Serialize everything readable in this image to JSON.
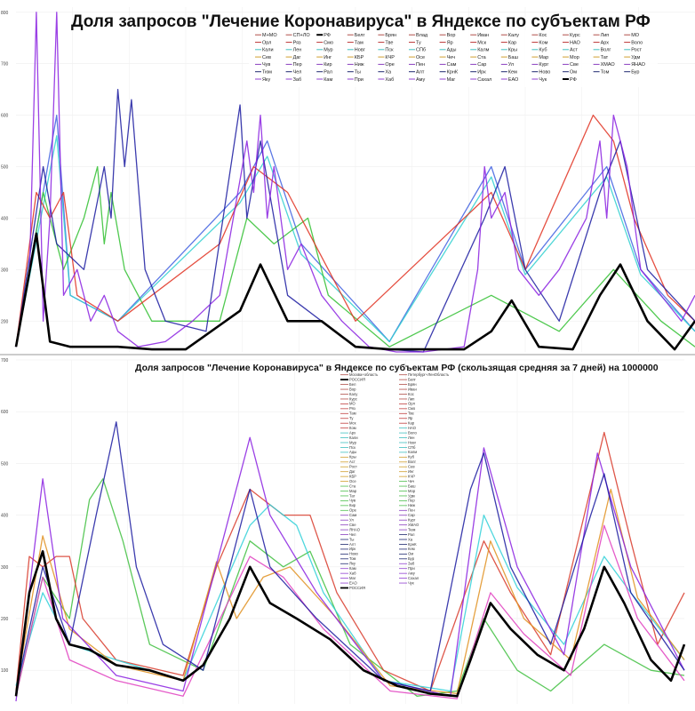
{
  "chart_data": [
    {
      "type": "line",
      "title": "Доля запросов \"Лечение Коронавируса\" в Яндексе по субъектам РФ",
      "xlabel": "",
      "ylabel": "",
      "ylim": [
        140,
        810
      ],
      "xlim": [
        0,
        100
      ],
      "yticks": [
        200,
        300,
        400,
        500,
        600,
        700,
        800
      ],
      "grid": true,
      "legend_placement": "top-right",
      "legend": [
        [
          "М+МО",
          "СП+ЛО",
          "РФ",
          "Белг",
          "Брян",
          "Влад",
          "Вор",
          "Иван",
          "Калу",
          "Кос",
          "Курс",
          "Лип",
          "МО"
        ],
        [
          "Орл",
          "Ряз",
          "Смо",
          "Там",
          "Тве",
          "Ту",
          "Яр",
          "Мск",
          "Кар",
          "Ком",
          "НАО",
          "Арх",
          "Воло"
        ],
        [
          "Кали",
          "Лен",
          "Мур",
          "Новг",
          "Пск",
          "СПб",
          "Ады",
          "Калм",
          "Кры",
          "Куб",
          "Аст",
          "Волг",
          "Рост"
        ],
        [
          "Сев",
          "Даг",
          "Инг",
          "КБР",
          "КЧР",
          "Осе",
          "Чеч",
          "Ста",
          "Баш",
          "Мар",
          "Мор",
          "Тат",
          "Удм"
        ],
        [
          "Чув",
          "Пер",
          "Кир",
          "Ниж",
          "Оре",
          "Пен",
          "Сам",
          "Сар",
          "Ул",
          "Кург",
          "Све",
          "ХМАО",
          "ЯНАО"
        ],
        [
          "Тюм",
          "Чел",
          "Рал",
          "Ты",
          "Ха",
          "Алт",
          "КрнК",
          "Ирк",
          "Кем",
          "Ново",
          "Ом",
          "Том",
          "Бур"
        ],
        [
          "Яку",
          "Заб",
          "Кам",
          "При",
          "Хаб",
          "Аму",
          "Маг",
          "Сахал",
          "ЕАО",
          "Чук",
          "РФ"
        ]
      ],
      "legend_row_colors": [
        "#b0504a",
        "#c04040",
        "#40c0c0",
        "#d0a030",
        "#8a40c0",
        "#202a70",
        "#9040d0"
      ],
      "series": [
        {
          "name": "Ха",
          "color": "#4060e0",
          "x": [
            0,
            6,
            8,
            15,
            33,
            37,
            42,
            55,
            70,
            75,
            87,
            92,
            100
          ],
          "y": [
            150,
            600,
            250,
            200,
            450,
            550,
            350,
            160,
            500,
            300,
            500,
            300,
            180
          ]
        },
        {
          "name": "Ком",
          "color": "#30d0d0",
          "x": [
            0,
            6,
            8,
            15,
            33,
            37,
            42,
            55,
            70,
            75,
            87,
            92,
            100
          ],
          "y": [
            150,
            560,
            250,
            200,
            430,
            520,
            330,
            160,
            480,
            290,
            480,
            290,
            180
          ]
        },
        {
          "name": "Куб",
          "color": "#30c030",
          "x": [
            0,
            4,
            7,
            10,
            12,
            13,
            14,
            16,
            20,
            30,
            34,
            38,
            43,
            46,
            55,
            70,
            80,
            88,
            95,
            100
          ],
          "y": [
            150,
            450,
            300,
            400,
            500,
            350,
            450,
            300,
            200,
            200,
            400,
            350,
            400,
            250,
            150,
            250,
            180,
            300,
            200,
            150
          ]
        },
        {
          "name": "Влад",
          "color": "#e03020",
          "x": [
            0,
            3,
            5,
            7,
            9,
            15,
            30,
            35,
            40,
            44,
            50,
            70,
            75,
            85,
            88,
            91,
            96,
            100
          ],
          "y": [
            150,
            450,
            400,
            450,
            250,
            200,
            350,
            500,
            450,
            350,
            200,
            450,
            300,
            600,
            550,
            400,
            250,
            200
          ]
        },
        {
          "name": "Мск",
          "color": "#1a1aa0",
          "x": [
            0,
            4,
            6,
            10,
            13,
            14,
            15,
            16,
            17,
            19,
            22,
            28,
            33,
            34,
            36,
            40,
            50,
            60,
            69,
            72,
            75,
            80,
            86,
            89,
            93,
            100
          ],
          "y": [
            150,
            500,
            350,
            300,
            500,
            400,
            650,
            500,
            630,
            300,
            200,
            180,
            620,
            400,
            550,
            250,
            150,
            140,
            400,
            500,
            300,
            200,
            450,
            550,
            300,
            200
          ]
        },
        {
          "name": "Бур",
          "color": "#8a20e0",
          "x": [
            0,
            2,
            3,
            4,
            5,
            6,
            7,
            9,
            11,
            13,
            15,
            18,
            22,
            26,
            30,
            32,
            34,
            35,
            36,
            37,
            38,
            40,
            42,
            45,
            48,
            52,
            56,
            60,
            66,
            68,
            69,
            70,
            72,
            74,
            77,
            80,
            84,
            86,
            87,
            88,
            90,
            92,
            95,
            98,
            100
          ],
          "y": [
            150,
            300,
            800,
            200,
            400,
            800,
            250,
            300,
            200,
            250,
            180,
            150,
            160,
            200,
            250,
            400,
            550,
            450,
            600,
            400,
            500,
            300,
            350,
            250,
            200,
            150,
            140,
            140,
            150,
            300,
            500,
            400,
            450,
            300,
            250,
            300,
            400,
            550,
            400,
            600,
            500,
            300,
            250,
            200,
            250
          ]
        },
        {
          "name": "РФ",
          "color": "#000000",
          "x": [
            0,
            3,
            5,
            8,
            11,
            15,
            20,
            25,
            33,
            36,
            40,
            45,
            50,
            55,
            60,
            66,
            70,
            73,
            77,
            82,
            86,
            89,
            93,
            97,
            100
          ],
          "y": [
            150,
            370,
            160,
            150,
            150,
            150,
            145,
            145,
            220,
            310,
            200,
            200,
            150,
            145,
            145,
            145,
            180,
            240,
            150,
            145,
            250,
            310,
            200,
            145,
            200
          ]
        }
      ]
    },
    {
      "type": "line",
      "title": "Доля запросов \"Лечение Коронавируса\" в Яндексе по субъектам РФ (скользящая средняя за 7 дней) на 1000000",
      "xlabel": "",
      "ylabel": "",
      "ylim": [
        35,
        700
      ],
      "xlim": [
        0,
        100
      ],
      "yticks": [
        100,
        200,
        300,
        400,
        500,
        600,
        700
      ],
      "grid": true,
      "legend_placement": "top-center",
      "legend_columns": [
        [
          "Москва+область",
          "РОССИЯ",
          "Бел",
          "Вор",
          "Калу",
          "Курс",
          "МО",
          "Ряз",
          "Там",
          "Ту",
          "Мск",
          "Ком",
          "Арх",
          "Кали",
          "Мур",
          "Пск",
          "Ады",
          "Кры",
          "Аст",
          "Рост",
          "Даг",
          "КБР",
          "Осе",
          "Ста",
          "Мар",
          "Тат",
          "Чув",
          "Кир",
          "Оре",
          "Сам",
          "Ул",
          "Све",
          "ЯНАО",
          "Чел",
          "Ты",
          "Алт",
          "Ирк",
          "Ново",
          "Том",
          "Яку",
          "Кам",
          "Хаб",
          "Маг",
          "ЕАО",
          "РОССИЯ"
        ],
        [
          "Петербург+ЛенОбласть",
          "Белг",
          "Брян",
          "Иван",
          "Кос",
          "Лип",
          "Орл",
          "Смо",
          "Тве",
          "Яр",
          "Кар",
          "НАО",
          "Воло",
          "Лен",
          "Новг",
          "СПб",
          "Калм",
          "Куб",
          "Волг",
          "Сев",
          "Инг",
          "КЧР",
          "Чеч",
          "Баш",
          "Мор",
          "Удм",
          "Пер",
          "Ниж",
          "Пен",
          "Сар",
          "Кург",
          "ХМАО",
          "Тюм",
          "Рал",
          "Ха",
          "КрнК",
          "Кем",
          "Ом",
          "Бур",
          "Заб",
          "При",
          "Аму",
          "Сахал",
          "Чук"
        ]
      ],
      "series": [
        {
          "name": "Куб",
          "color": "#40c040",
          "x": [
            0,
            4,
            8,
            11,
            13,
            16,
            20,
            28,
            35,
            40,
            44,
            50,
            60,
            66,
            70,
            75,
            80,
            88,
            95,
            100
          ],
          "y": [
            50,
            280,
            200,
            430,
            470,
            350,
            150,
            100,
            350,
            300,
            330,
            150,
            50,
            60,
            200,
            100,
            60,
            150,
            100,
            90
          ]
        },
        {
          "name": "Влад",
          "color": "#d83a2a",
          "x": [
            0,
            2,
            4,
            6,
            8,
            10,
            15,
            25,
            30,
            35,
            40,
            44,
            48,
            55,
            62,
            70,
            74,
            80,
            88,
            92,
            96,
            100
          ],
          "y": [
            60,
            320,
            300,
            320,
            320,
            200,
            120,
            90,
            300,
            450,
            400,
            400,
            250,
            100,
            60,
            350,
            250,
            130,
            560,
            350,
            150,
            250
          ]
        },
        {
          "name": "Ком",
          "color": "#30d0d8",
          "x": [
            0,
            4,
            8,
            15,
            25,
            35,
            38,
            42,
            46,
            55,
            65,
            70,
            75,
            82,
            88,
            92,
            100
          ],
          "y": [
            70,
            250,
            150,
            120,
            80,
            380,
            420,
            380,
            250,
            80,
            60,
            400,
            260,
            150,
            320,
            250,
            120
          ]
        },
        {
          "name": "Сев",
          "color": "#e09020",
          "x": [
            0,
            4,
            8,
            15,
            25,
            30,
            33,
            37,
            41,
            48,
            56,
            66,
            71,
            76,
            83,
            89,
            93,
            100
          ],
          "y": [
            60,
            360,
            180,
            110,
            80,
            310,
            200,
            280,
            300,
            200,
            70,
            55,
            350,
            200,
            120,
            450,
            240,
            120
          ]
        },
        {
          "name": "Пер",
          "color": "#e040c0",
          "x": [
            0,
            4,
            8,
            15,
            25,
            35,
            40,
            46,
            56,
            66,
            71,
            76,
            83,
            88,
            93,
            100
          ],
          "y": [
            50,
            280,
            120,
            80,
            50,
            320,
            280,
            180,
            60,
            45,
            250,
            170,
            90,
            380,
            200,
            80
          ]
        },
        {
          "name": "Бур",
          "color": "#8a20e0",
          "x": [
            0,
            4,
            7,
            15,
            25,
            35,
            38,
            45,
            55,
            65,
            70,
            75,
            82,
            87,
            92,
            100
          ],
          "y": [
            40,
            470,
            200,
            90,
            60,
            550,
            400,
            250,
            80,
            50,
            530,
            300,
            130,
            520,
            300,
            100
          ]
        },
        {
          "name": "Москва+область",
          "color": "#1a1aa0",
          "x": [
            0,
            4,
            8,
            12,
            15,
            18,
            22,
            28,
            35,
            38,
            45,
            55,
            62,
            68,
            70,
            74,
            80,
            86,
            88,
            92,
            100
          ],
          "y": [
            60,
            300,
            150,
            400,
            580,
            300,
            150,
            100,
            450,
            300,
            200,
            80,
            60,
            450,
            520,
            300,
            150,
            400,
            480,
            250,
            100
          ]
        },
        {
          "name": "РОССИЯ",
          "color": "#000000",
          "x": [
            0,
            2,
            4,
            6,
            8,
            11,
            15,
            20,
            25,
            28,
            32,
            35,
            38,
            42,
            47,
            52,
            57,
            62,
            66,
            68,
            71,
            74,
            78,
            82,
            85,
            88,
            91,
            95,
            98,
            100
          ],
          "y": [
            50,
            250,
            330,
            200,
            150,
            140,
            110,
            100,
            80,
            110,
            200,
            300,
            230,
            200,
            160,
            100,
            70,
            55,
            50,
            120,
            230,
            180,
            130,
            100,
            180,
            300,
            230,
            120,
            80,
            150
          ]
        }
      ]
    }
  ]
}
